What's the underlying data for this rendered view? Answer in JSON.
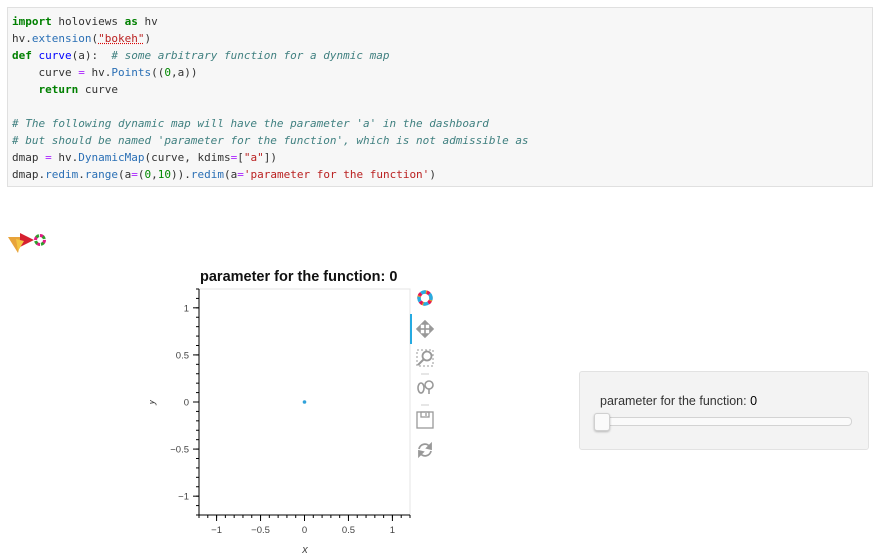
{
  "code_cell": {
    "lines": [
      [
        {
          "t": "import",
          "c": "k"
        },
        {
          "t": " holoviews "
        },
        {
          "t": "as",
          "c": "k"
        },
        {
          "t": " hv"
        }
      ],
      [
        {
          "t": "hv."
        },
        {
          "t": "extension",
          "c": "e"
        },
        {
          "t": "("
        },
        {
          "t": "\"bokeh\"",
          "c": "s sq"
        },
        {
          "t": ")"
        }
      ],
      [
        {
          "t": "def",
          "c": "k"
        },
        {
          "t": " "
        },
        {
          "t": "curve",
          "c": "f"
        },
        {
          "t": "(a):  "
        },
        {
          "t": "# some arbitrary function for a dynmic map",
          "c": "c"
        }
      ],
      [
        {
          "t": "    curve "
        },
        {
          "t": "=",
          "c": "o"
        },
        {
          "t": " hv."
        },
        {
          "t": "Points",
          "c": "e"
        },
        {
          "t": "(("
        },
        {
          "t": "0",
          "c": "n"
        },
        {
          "t": ",a))"
        }
      ],
      [
        {
          "t": "    "
        },
        {
          "t": "return",
          "c": "k"
        },
        {
          "t": " curve"
        }
      ],
      [
        {
          "t": " "
        }
      ],
      [
        {
          "t": "# The following dynamic map will have the parameter 'a' in the dashboard",
          "c": "c"
        }
      ],
      [
        {
          "t": "# but should be named 'parameter for the function', which is not admissible as",
          "c": "c"
        }
      ],
      [
        {
          "t": "dmap "
        },
        {
          "t": "=",
          "c": "o"
        },
        {
          "t": " hv."
        },
        {
          "t": "DynamicMap",
          "c": "e"
        },
        {
          "t": "(curve, kdims"
        },
        {
          "t": "=",
          "c": "o"
        },
        {
          "t": "["
        },
        {
          "t": "\"a\"",
          "c": "s"
        },
        {
          "t": "])"
        }
      ],
      [
        {
          "t": "dmap."
        },
        {
          "t": "redim",
          "c": "e"
        },
        {
          "t": "."
        },
        {
          "t": "range",
          "c": "e"
        },
        {
          "t": "(a"
        },
        {
          "t": "=",
          "c": "o"
        },
        {
          "t": "("
        },
        {
          "t": "0",
          "c": "n"
        },
        {
          "t": ","
        },
        {
          "t": "10",
          "c": "n"
        },
        {
          "t": "))."
        },
        {
          "t": "redim",
          "c": "e"
        },
        {
          "t": "(a"
        },
        {
          "t": "=",
          "c": "o"
        },
        {
          "t": "'parameter for the function'",
          "c": "s"
        },
        {
          "t": ")"
        }
      ]
    ]
  },
  "plot": {
    "title": "parameter for the function: 0",
    "toolbar": [
      "bokeh-logo-icon",
      "pan-icon",
      "box-zoom-icon",
      "wheel-zoom-icon",
      "save-icon",
      "reset-icon"
    ],
    "point_color": "#30a2da"
  },
  "chart_data": {
    "type": "scatter",
    "title": "parameter for the function: 0",
    "xlabel": "x",
    "ylabel": "y",
    "x": [
      0
    ],
    "y": [
      0
    ],
    "xlim": [
      -1.2,
      1.2
    ],
    "ylim": [
      -1.2,
      1.2
    ],
    "xticks": [
      "−1",
      "−0.5",
      "0",
      "0.5",
      "1"
    ],
    "yticks": [
      "1",
      "0.5",
      "0",
      "−0.5",
      "−1"
    ],
    "grid": false
  },
  "widget": {
    "label": "parameter for the function:",
    "value": "0",
    "range": [
      0,
      10
    ],
    "slider_value": 0
  }
}
